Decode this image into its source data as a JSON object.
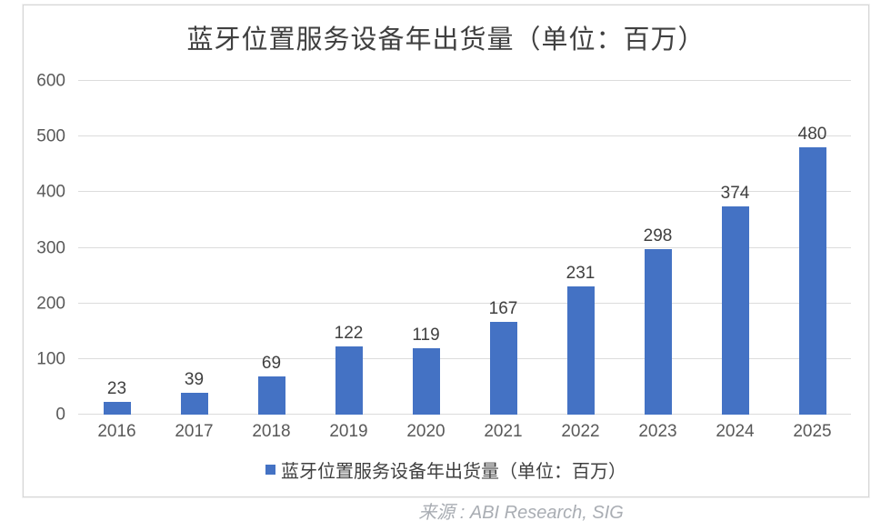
{
  "chart_data": {
    "type": "bar",
    "title": "蓝牙位置服务设备年出货量（单位：百万）",
    "categories": [
      "2016",
      "2017",
      "2018",
      "2019",
      "2020",
      "2021",
      "2022",
      "2023",
      "2024",
      "2025"
    ],
    "values": [
      23,
      39,
      69,
      122,
      119,
      167,
      231,
      298,
      374,
      480
    ],
    "ylim": [
      0,
      600
    ],
    "yticks": [
      0,
      100,
      200,
      300,
      400,
      500,
      600
    ],
    "grid": true,
    "legend": "蓝牙位置服务设备年出货量（单位：百万）",
    "legend_position": "bottom",
    "bar_color": "#4472C4",
    "gridline_color": "#DCDCDC",
    "axis_label_color": "#595959",
    "data_label_color": "#404040"
  },
  "source_note": "来源 : ABI Research, SIG"
}
